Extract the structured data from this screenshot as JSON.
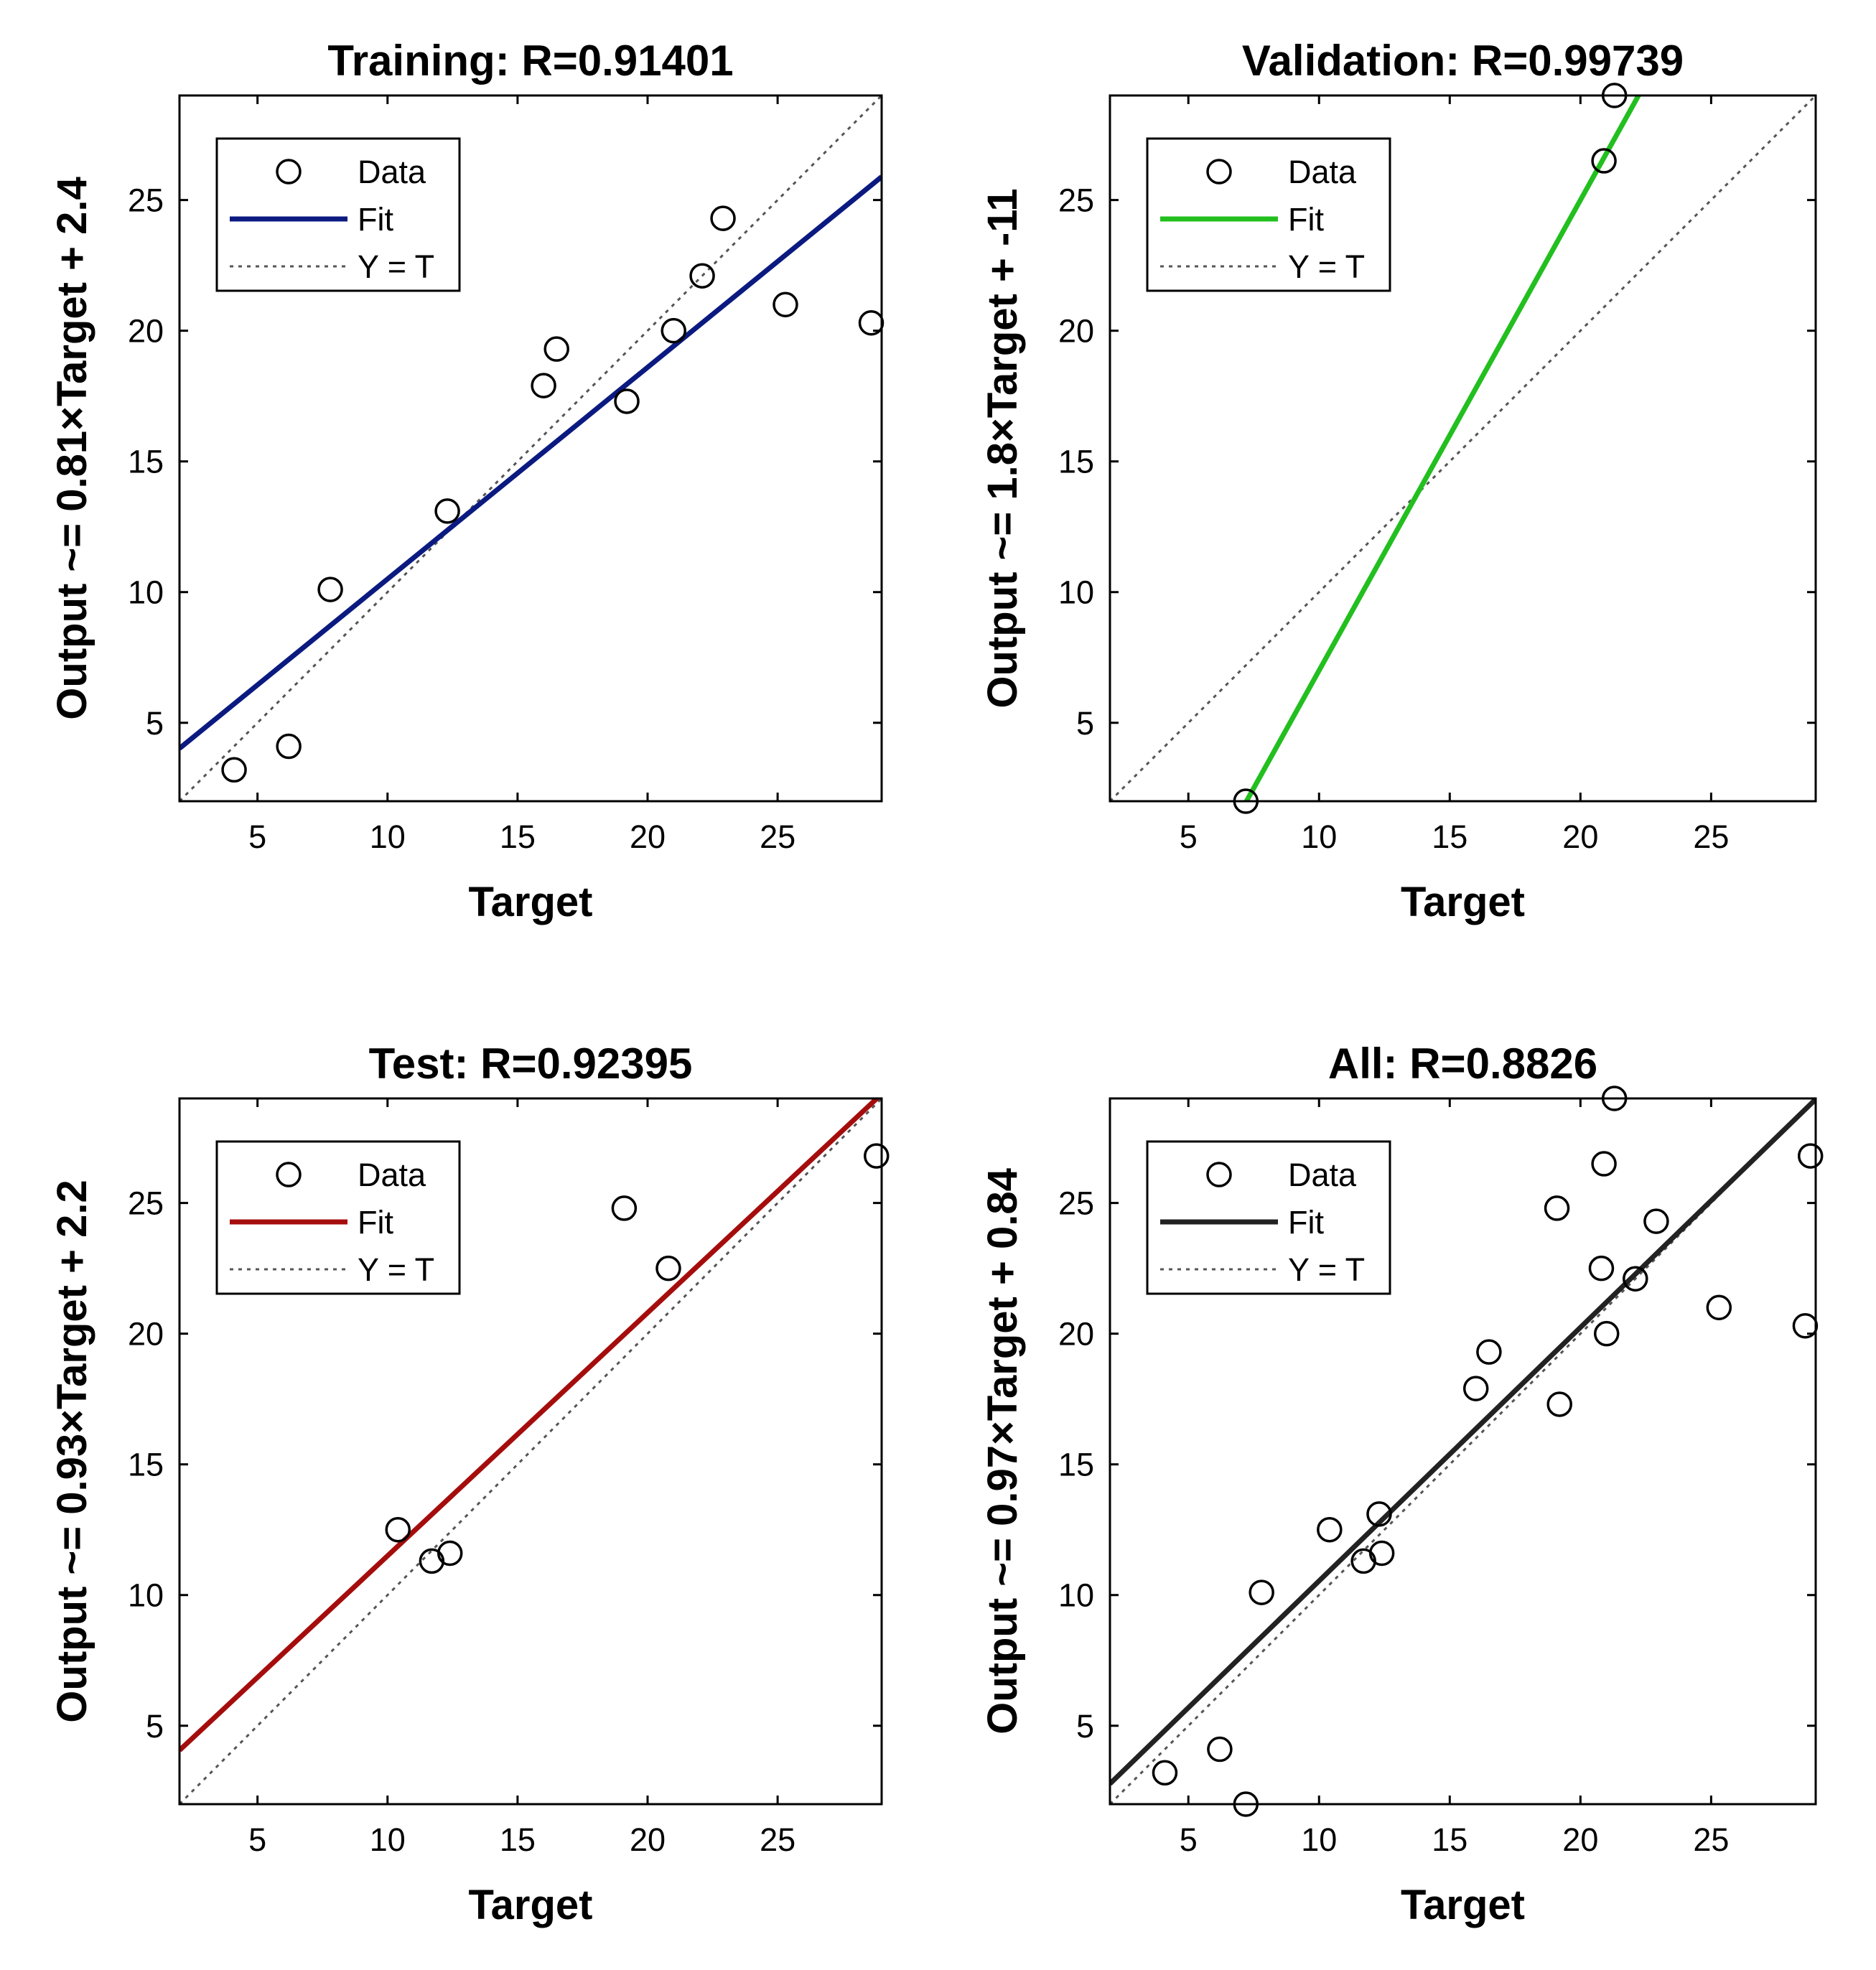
{
  "chart_data": [
    {
      "type": "scatter",
      "title": "Training: R=0.91401",
      "xlabel": "Target",
      "ylabel": "Output ~= 0.81×Target + 2.4",
      "xlim": [
        2,
        29
      ],
      "ylim": [
        2,
        29
      ],
      "xticks": [
        5,
        10,
        15,
        20,
        25
      ],
      "yticks": [
        5,
        10,
        15,
        20,
        25
      ],
      "fit": {
        "slope": 0.81,
        "intercept": 2.4,
        "color": "#0b1a80"
      },
      "legend": [
        "Data",
        "Fit",
        "Y = T"
      ],
      "points": [
        [
          4.1,
          3.2
        ],
        [
          6.2,
          4.1
        ],
        [
          7.8,
          10.1
        ],
        [
          12.3,
          13.1
        ],
        [
          16.0,
          17.9
        ],
        [
          16.5,
          19.3
        ],
        [
          19.2,
          17.3
        ],
        [
          21.0,
          20.0
        ],
        [
          22.1,
          22.1
        ],
        [
          22.9,
          24.3
        ],
        [
          25.3,
          21.0
        ],
        [
          28.6,
          20.3
        ]
      ]
    },
    {
      "type": "scatter",
      "title": "Validation: R=0.99739",
      "xlabel": "Target",
      "ylabel": "Output ~= 1.8×Target + -11",
      "xlim": [
        2,
        29
      ],
      "ylim": [
        2,
        29
      ],
      "xticks": [
        5,
        10,
        15,
        20,
        25
      ],
      "yticks": [
        5,
        10,
        15,
        20,
        25
      ],
      "fit": {
        "slope": 1.8,
        "intercept": -11,
        "color": "#22bf1f"
      },
      "legend": [
        "Data",
        "Fit",
        "Y = T"
      ],
      "points": [
        [
          7.2,
          2.0
        ],
        [
          20.9,
          26.5
        ],
        [
          21.3,
          29.0
        ]
      ]
    },
    {
      "type": "scatter",
      "title": "Test: R=0.92395",
      "xlabel": "Target",
      "ylabel": "Output ~= 0.93×Target + 2.2",
      "xlim": [
        2,
        29
      ],
      "ylim": [
        2,
        29
      ],
      "xticks": [
        5,
        10,
        15,
        20,
        25
      ],
      "yticks": [
        5,
        10,
        15,
        20,
        25
      ],
      "fit": {
        "slope": 0.93,
        "intercept": 2.2,
        "color": "#a50d0d"
      },
      "legend": [
        "Data",
        "Fit",
        "Y = T"
      ],
      "points": [
        [
          10.4,
          12.5
        ],
        [
          11.7,
          11.3
        ],
        [
          12.4,
          11.6
        ],
        [
          19.1,
          24.8
        ],
        [
          20.8,
          22.5
        ],
        [
          28.8,
          26.8
        ]
      ]
    },
    {
      "type": "scatter",
      "title": "All: R=0.8826",
      "xlabel": "Target",
      "ylabel": "Output ~= 0.97×Target + 0.84",
      "xlim": [
        2,
        29
      ],
      "ylim": [
        2,
        29
      ],
      "xticks": [
        5,
        10,
        15,
        20,
        25
      ],
      "yticks": [
        5,
        10,
        15,
        20,
        25
      ],
      "fit": {
        "slope": 0.97,
        "intercept": 0.84,
        "color": "#222222"
      },
      "legend": [
        "Data",
        "Fit",
        "Y = T"
      ],
      "points": [
        [
          4.1,
          3.2
        ],
        [
          6.2,
          4.1
        ],
        [
          7.2,
          2.0
        ],
        [
          7.8,
          10.1
        ],
        [
          10.4,
          12.5
        ],
        [
          11.7,
          11.3
        ],
        [
          12.3,
          13.1
        ],
        [
          12.4,
          11.6
        ],
        [
          16.0,
          17.9
        ],
        [
          16.5,
          19.3
        ],
        [
          19.1,
          24.8
        ],
        [
          19.2,
          17.3
        ],
        [
          20.8,
          22.5
        ],
        [
          20.9,
          26.5
        ],
        [
          21.0,
          20.0
        ],
        [
          21.3,
          29.0
        ],
        [
          22.1,
          22.1
        ],
        [
          22.9,
          24.3
        ],
        [
          25.3,
          21.0
        ],
        [
          28.6,
          20.3
        ],
        [
          28.8,
          26.8
        ]
      ]
    }
  ]
}
